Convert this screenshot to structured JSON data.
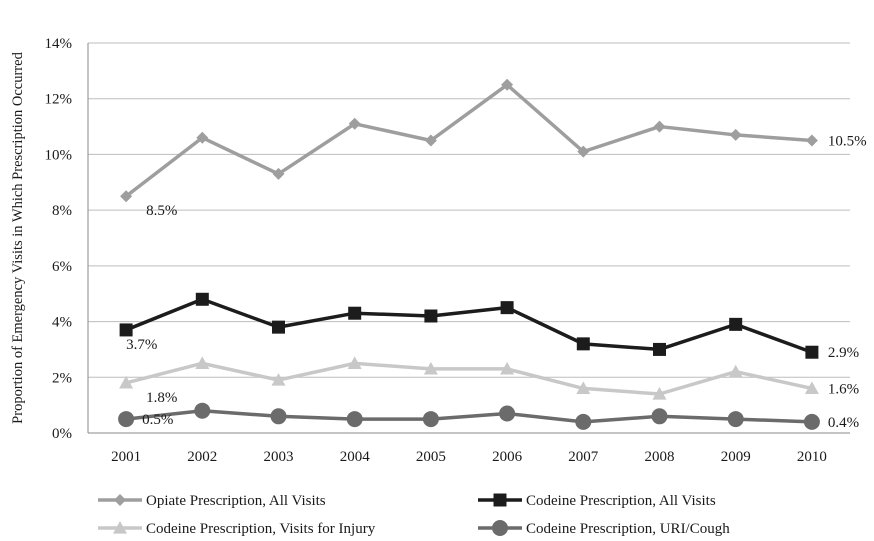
{
  "chart_data": {
    "type": "line",
    "title": "",
    "xlabel": "",
    "ylabel": "Proportion of Emergency Visits in Which Prescription Occurred",
    "categories": [
      "2001",
      "2002",
      "2003",
      "2004",
      "2005",
      "2006",
      "2007",
      "2008",
      "2009",
      "2010"
    ],
    "ylim": [
      0,
      14
    ],
    "yticks": [
      0,
      2,
      4,
      6,
      8,
      10,
      12,
      14
    ],
    "ytick_labels": [
      "0%",
      "2%",
      "4%",
      "6%",
      "8%",
      "10%",
      "12%",
      "14%"
    ],
    "grid": "horizontal",
    "legend_position": "bottom",
    "series": [
      {
        "name": "Opiate Prescription, All Visits",
        "values": [
          8.5,
          10.6,
          9.3,
          11.1,
          10.5,
          12.5,
          10.1,
          11.0,
          10.7,
          10.5
        ],
        "color": "#9e9e9e",
        "marker": "diamond",
        "labels": [
          {
            "index": 0,
            "text": "8.5%",
            "pos": "below-right"
          },
          {
            "index": 9,
            "text": "10.5%",
            "pos": "right"
          }
        ]
      },
      {
        "name": "Codeine Prescription, All Visits",
        "values": [
          3.7,
          4.8,
          3.8,
          4.3,
          4.2,
          4.5,
          3.2,
          3.0,
          3.9,
          2.9
        ],
        "color": "#1c1c1c",
        "marker": "square",
        "labels": [
          {
            "index": 0,
            "text": "3.7%",
            "pos": "below"
          },
          {
            "index": 9,
            "text": "2.9%",
            "pos": "right"
          }
        ]
      },
      {
        "name": "Codeine Prescription, Visits for Injury",
        "values": [
          1.8,
          2.5,
          1.9,
          2.5,
          2.3,
          2.3,
          1.6,
          1.4,
          2.2,
          1.6
        ],
        "color": "#c8c8c8",
        "marker": "triangle",
        "labels": [
          {
            "index": 0,
            "text": "1.8%",
            "pos": "below-right"
          },
          {
            "index": 9,
            "text": "1.6%",
            "pos": "right"
          }
        ]
      },
      {
        "name": "Codeine Prescription, URI/Cough",
        "values": [
          0.5,
          0.8,
          0.6,
          0.5,
          0.5,
          0.7,
          0.4,
          0.6,
          0.5,
          0.4
        ],
        "color": "#6b6b6b",
        "marker": "circle",
        "labels": [
          {
            "index": 0,
            "text": "0.5%",
            "pos": "right"
          },
          {
            "index": 9,
            "text": "0.4%",
            "pos": "right"
          }
        ]
      }
    ]
  }
}
